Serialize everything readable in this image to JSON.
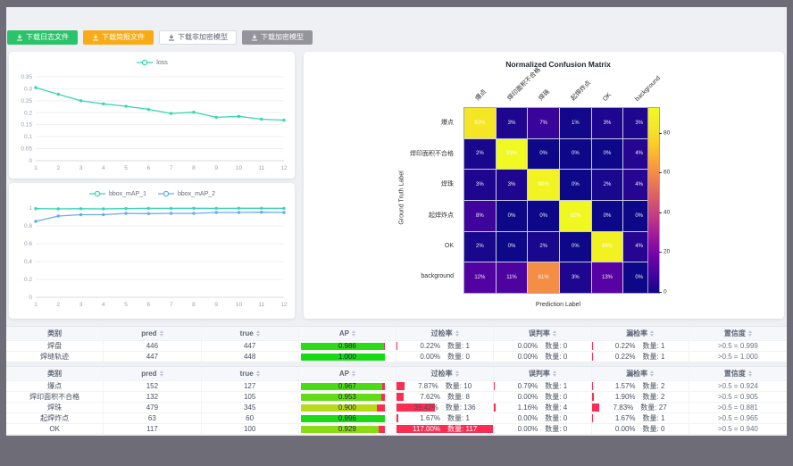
{
  "buttons": [
    {
      "label": "下载日志文件",
      "variant": "green"
    },
    {
      "label": "下载简报文件",
      "variant": "orange"
    },
    {
      "label": "下载非加密模型",
      "variant": "white"
    },
    {
      "label": "下载加密模型",
      "variant": "gray"
    }
  ],
  "chart_data": [
    {
      "type": "line",
      "title": "loss",
      "x": [
        1,
        2,
        3,
        4,
        5,
        6,
        7,
        8,
        9,
        10,
        11,
        12
      ],
      "series": [
        {
          "name": "loss",
          "color": "#35d6b4",
          "values": [
            0.305,
            0.277,
            0.25,
            0.237,
            0.227,
            0.214,
            0.197,
            0.202,
            0.181,
            0.185,
            0.173,
            0.169
          ]
        }
      ],
      "ylim": [
        0,
        0.35
      ],
      "yticks": [
        0,
        0.05,
        0.1,
        0.15,
        0.2,
        0.25,
        0.3,
        0.35
      ],
      "ytick_labels": [
        "0",
        "0.05",
        "0.1",
        "0.15",
        "0.2",
        "0.25",
        "0.3",
        "0.35"
      ],
      "legend_position": "top",
      "grid": true
    },
    {
      "type": "line",
      "title": "bbox_mAP",
      "x": [
        1,
        2,
        3,
        4,
        5,
        6,
        7,
        8,
        9,
        10,
        11,
        12
      ],
      "series": [
        {
          "name": "bbox_mAP_1",
          "color": "#35d6b4",
          "values": [
            0.993,
            0.99,
            0.992,
            0.99,
            0.994,
            0.996,
            0.996,
            0.997,
            0.996,
            0.997,
            0.997,
            0.996
          ]
        },
        {
          "name": "bbox_mAP_2",
          "color": "#66aced",
          "values": [
            0.85,
            0.91,
            0.925,
            0.925,
            0.94,
            0.937,
            0.94,
            0.94,
            0.95,
            0.95,
            0.953,
            0.95
          ]
        }
      ],
      "ylim": [
        0,
        1
      ],
      "yticks": [
        0,
        0.2,
        0.4,
        0.6,
        0.8,
        1
      ],
      "ytick_labels": [
        "0",
        "0.2",
        "0.4",
        "0.6",
        "0.8",
        "1"
      ],
      "legend_position": "top",
      "grid": true
    },
    {
      "type": "heatmap",
      "title": "Normalized Confusion Matrix",
      "xlabel": "Prediction Label",
      "ylabel": "Ground Truth Label",
      "labels": [
        "爆点",
        "焊印面积不合格",
        "焊珠",
        "起焊炸点",
        "OK",
        "background"
      ],
      "matrix": [
        [
          83,
          3,
          7,
          1,
          3,
          3
        ],
        [
          2,
          93,
          0,
          0,
          0,
          4
        ],
        [
          3,
          3,
          90,
          0,
          2,
          4
        ],
        [
          8,
          0,
          0,
          92,
          0,
          0
        ],
        [
          2,
          0,
          2,
          0,
          89,
          4
        ],
        [
          12,
          11,
          61,
          3,
          13,
          0
        ]
      ],
      "unit": "%",
      "vmax": 93,
      "colorbar_ticks": [
        0,
        20,
        40,
        60,
        80
      ],
      "colormap": "plasma"
    }
  ],
  "tables": {
    "headers": [
      "类别",
      "pred",
      "true",
      "AP",
      "过检率",
      "误判率",
      "漏检率",
      "置信度"
    ],
    "sortable": [
      false,
      true,
      true,
      true,
      true,
      true,
      true,
      true
    ],
    "groups": [
      {
        "rows": [
          {
            "name": "焊盘",
            "pred": "446",
            "true": "447",
            "ap": 0.986,
            "ap_label": "0.986",
            "over_pct": "0.22%",
            "over_val": 0.22,
            "over_count": "数量: 1",
            "mis_pct": "0.00%",
            "mis_val": 0,
            "mis_count": "数量: 0",
            "miss_pct": "0.22%",
            "miss_val": 0.22,
            "miss_count": "数量: 1",
            "conf": ">0.5 = 0.999"
          },
          {
            "name": "焊缝轨迹",
            "pred": "447",
            "true": "448",
            "ap": 1.0,
            "ap_label": "1.000",
            "over_pct": "0.00%",
            "over_val": 0,
            "over_count": "数量: 0",
            "mis_pct": "0.00%",
            "mis_val": 0,
            "mis_count": "数量: 0",
            "miss_pct": "0.22%",
            "miss_val": 0.22,
            "miss_count": "数量: 1",
            "conf": ">0.5 = 1.000"
          }
        ]
      },
      {
        "rows": [
          {
            "name": "爆点",
            "pred": "152",
            "true": "127",
            "ap": 0.967,
            "ap_label": "0.967",
            "over_pct": "7.87%",
            "over_val": 7.87,
            "over_count": "数量: 10",
            "mis_pct": "0.79%",
            "mis_val": 0.79,
            "mis_count": "数量: 1",
            "miss_pct": "1.57%",
            "miss_val": 1.57,
            "miss_count": "数量: 2",
            "conf": ">0.5 = 0.924"
          },
          {
            "name": "焊印面积不合格",
            "pred": "132",
            "true": "105",
            "ap": 0.953,
            "ap_label": "0.953",
            "over_pct": "7.62%",
            "over_val": 7.62,
            "over_count": "数量: 8",
            "mis_pct": "0.00%",
            "mis_val": 0,
            "mis_count": "数量: 0",
            "miss_pct": "1.90%",
            "miss_val": 1.9,
            "miss_count": "数量: 2",
            "conf": ">0.5 = 0.905"
          },
          {
            "name": "焊珠",
            "pred": "479",
            "true": "345",
            "ap": 0.9,
            "ap_label": "0.900",
            "over_pct": "39.42%",
            "over_val": 39.42,
            "over_count": "数量: 136",
            "mis_pct": "1.16%",
            "mis_val": 1.16,
            "mis_count": "数量: 4",
            "miss_pct": "7.83%",
            "miss_val": 7.83,
            "miss_count": "数量: 27",
            "conf": ">0.5 = 0.881"
          },
          {
            "name": "起焊炸点",
            "pred": "63",
            "true": "60",
            "ap": 0.996,
            "ap_label": "0.996",
            "over_pct": "1.67%",
            "over_val": 1.67,
            "over_count": "数量: 1",
            "mis_pct": "0.00%",
            "mis_val": 0,
            "mis_count": "数量: 0",
            "miss_pct": "1.67%",
            "miss_val": 1.67,
            "miss_count": "数量: 1",
            "conf": ">0.5 = 0.965"
          },
          {
            "name": "OK",
            "pred": "117",
            "true": "100",
            "ap": 0.929,
            "ap_label": "0.929",
            "over_pct": "117.00%",
            "over_val": 117,
            "over_count": "数量: 117",
            "mis_pct": "0.00%",
            "mis_val": 0,
            "mis_count": "数量: 0",
            "miss_pct": "0.00%",
            "miss_val": 0,
            "miss_count": "数量: 0",
            "conf": ">0.5 = 0.940"
          }
        ]
      }
    ]
  },
  "colors": {
    "page_bg": "#6e6d77",
    "panel_bg": "#eef0f4",
    "teal_line": "#35d6b4",
    "blue_line": "#66aced",
    "rate_bar_red": "#fb2d52",
    "btn_green": "#2bc36a",
    "btn_orange": "#f9ab17"
  }
}
